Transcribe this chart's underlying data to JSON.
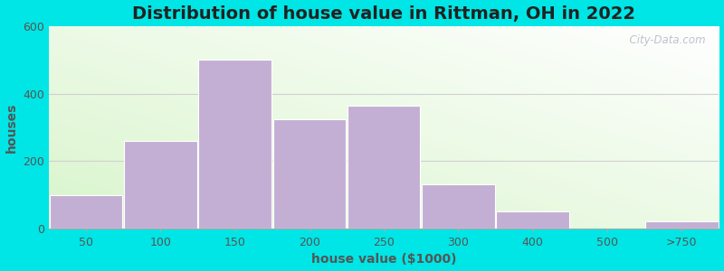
{
  "title": "Distribution of house value in Rittman, OH in 2022",
  "xlabel": "house value ($1000)",
  "ylabel": "houses",
  "bar_color": "#c4afd4",
  "background_outer": "#00e5e5",
  "ylim": [
    0,
    600
  ],
  "yticks": [
    0,
    200,
    400,
    600
  ],
  "tick_labels": [
    "50",
    "100",
    "150",
    "200",
    "250",
    "300",
    "400",
    "500",
    ">750"
  ],
  "tick_positions": [
    0,
    1,
    2,
    3,
    4,
    5,
    6,
    7,
    8
  ],
  "values": [
    100,
    260,
    500,
    325,
    365,
    130,
    50,
    0,
    20
  ],
  "title_fontsize": 14,
  "label_fontsize": 10,
  "tick_fontsize": 9,
  "watermark": "  City-Data.com"
}
